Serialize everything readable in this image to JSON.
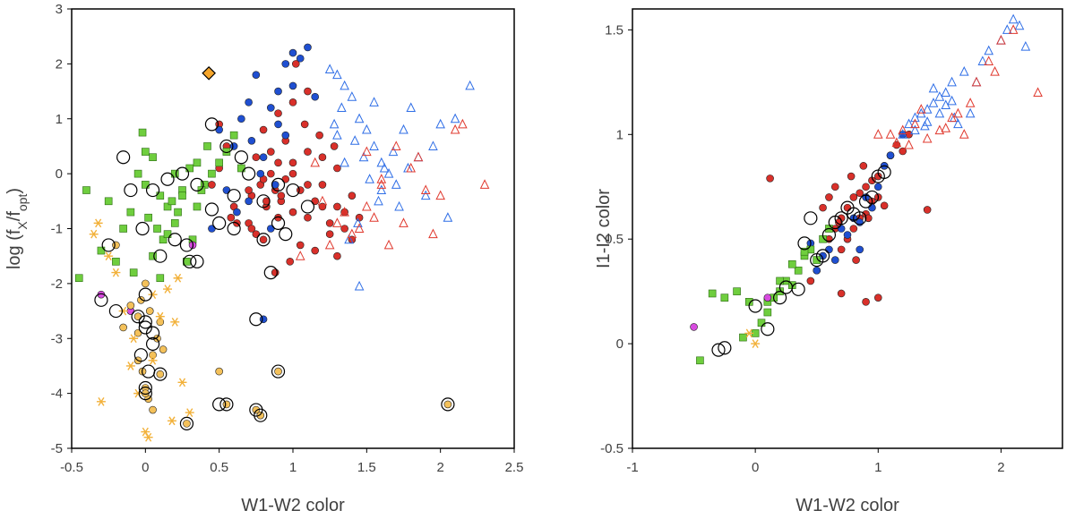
{
  "chart_data": [
    {
      "type": "scatter",
      "title": "",
      "xlabel": "W1-W2 color",
      "ylabel_main": "log (f",
      "ylabel_sub_x": "X",
      "ylabel_mid": "/f",
      "ylabel_sub_opt": "opt",
      "ylabel_end": ")",
      "xlim": [
        -0.5,
        2.5
      ],
      "ylim": [
        -5,
        3
      ],
      "xticks": [
        -0.5,
        0,
        0.5,
        1,
        1.5,
        2,
        2.5
      ],
      "xtick_labels": [
        "-0.5",
        "0",
        "0.5",
        "1",
        "1.5",
        "2",
        "2.5"
      ],
      "yticks": [
        -5,
        -4,
        -3,
        -2,
        -1,
        0,
        1,
        2,
        3
      ],
      "ytick_labels": [
        "-5",
        "-4",
        "-3",
        "-2",
        "-1",
        "0",
        "1",
        "2",
        "3"
      ],
      "grid": false,
      "series": [
        {
          "marker": "circle",
          "color": "#d9302a",
          "x": [
            0.72,
            0.78,
            0.82,
            0.85,
            0.88,
            0.92,
            0.95,
            1.0,
            1.05,
            1.1,
            1.15,
            1.2,
            1.25,
            1.3,
            1.35,
            0.65,
            0.7,
            0.75,
            0.8,
            0.9,
            1.0,
            1.1,
            1.2,
            1.3,
            1.4,
            0.6,
            0.55,
            0.5,
            0.8,
            0.9,
            1.0,
            1.1,
            0.95,
            0.85,
            0.75,
            1.05,
            1.15,
            1.25,
            0.7,
            0.8,
            0.9,
            1.0,
            1.1,
            1.2,
            1.3,
            0.45,
            0.5,
            1.35,
            1.4,
            1.45,
            0.88,
            0.62,
            1.18,
            1.02,
            0.98,
            1.28,
            0.72,
            0.58,
            1.08,
            0.82,
            0.92
          ],
          "y": [
            -0.4,
            -0.2,
            -0.6,
            0.0,
            -0.3,
            -0.5,
            -0.1,
            -0.7,
            -0.3,
            -0.8,
            -0.5,
            -0.2,
            -0.9,
            -0.6,
            -1.0,
            0.1,
            -0.9,
            -1.1,
            -1.2,
            -0.8,
            0.2,
            0.4,
            0.3,
            0.1,
            -0.4,
            -0.6,
            0.5,
            0.9,
            0.8,
            1.1,
            1.3,
            1.5,
            0.6,
            0.4,
            0.3,
            -1.3,
            -1.4,
            -1.1,
            -0.3,
            -0.1,
            0.2,
            0.0,
            -0.2,
            -0.6,
            -1.5,
            -0.2,
            0.1,
            -0.7,
            -1.2,
            -0.8,
            -1.8,
            -0.9,
            0.7,
            2.0,
            -1.6,
            0.5,
            -1.0,
            -0.8,
            0.9,
            -0.5,
            -0.4
          ]
        },
        {
          "marker": "circle",
          "color": "#1f4fd1",
          "x": [
            0.6,
            0.65,
            0.7,
            0.75,
            0.8,
            0.85,
            0.9,
            0.95,
            1.0,
            1.05,
            1.1,
            0.5,
            0.55,
            0.45,
            0.8,
            0.9,
            1.0,
            0.7,
            0.85,
            0.78,
            0.95,
            1.15,
            0.62,
            0.88,
            0.72
          ],
          "y": [
            0.5,
            1.0,
            1.3,
            1.8,
            0.3,
            1.2,
            1.5,
            2.0,
            2.2,
            2.1,
            2.3,
            0.8,
            -0.3,
            -1.0,
            -2.65,
            0.9,
            1.6,
            -0.5,
            -1.0,
            0.0,
            0.7,
            1.4,
            -0.7,
            -0.2,
            0.6
          ]
        },
        {
          "marker": "triangle",
          "color": "#2f6ee6",
          "x": [
            1.3,
            1.35,
            1.4,
            1.45,
            1.5,
            1.55,
            1.6,
            1.65,
            1.7,
            1.75,
            1.8,
            1.85,
            1.9,
            1.95,
            2.05,
            2.1,
            2.2,
            1.25,
            1.42,
            1.48,
            1.52,
            1.58,
            1.62,
            1.68,
            1.72,
            1.38,
            1.44,
            1.28,
            1.35,
            1.55,
            1.6,
            1.3,
            1.45,
            2.0,
            1.78,
            1.33
          ],
          "y": [
            1.8,
            1.6,
            1.4,
            1.0,
            0.8,
            0.5,
            0.2,
            0.0,
            -0.2,
            0.8,
            1.2,
            0.3,
            -0.4,
            0.5,
            -0.8,
            1.0,
            1.6,
            1.9,
            0.6,
            0.3,
            -0.1,
            -0.5,
            0.1,
            0.4,
            -0.6,
            -1.2,
            -0.9,
            0.9,
            0.2,
            1.3,
            -0.3,
            0.7,
            -2.05,
            0.9,
            0.1,
            1.2
          ]
        },
        {
          "marker": "triangle",
          "color": "#e0392e",
          "x": [
            1.2,
            1.3,
            1.4,
            1.5,
            1.6,
            1.7,
            1.8,
            1.9,
            2.0,
            2.1,
            2.3,
            1.25,
            1.35,
            1.45,
            1.55,
            1.65,
            1.75,
            1.85,
            1.15,
            1.95,
            2.15,
            1.05,
            1.5,
            1.6
          ],
          "y": [
            -0.5,
            -0.9,
            -1.1,
            -0.6,
            -0.2,
            0.5,
            0.1,
            -0.3,
            -0.4,
            0.8,
            -0.2,
            -1.3,
            -0.7,
            -1.0,
            -0.8,
            -1.3,
            -0.9,
            0.3,
            0.2,
            -1.1,
            0.9,
            -1.5,
            0.4,
            -0.1
          ]
        },
        {
          "marker": "square",
          "color": "#6fce3e",
          "x": [
            -0.45,
            -0.4,
            -0.3,
            -0.25,
            -0.2,
            -0.15,
            -0.1,
            -0.05,
            0.0,
            0.05,
            0.1,
            0.15,
            0.2,
            0.25,
            0.3,
            0.35,
            0.4,
            0.45,
            0.5,
            0.55,
            -0.02,
            0.02,
            0.08,
            0.12,
            0.18,
            0.22,
            0.28,
            0.32,
            0.38,
            -0.08,
            0.0,
            0.05,
            0.1,
            0.15,
            0.2,
            0.25,
            0.6,
            0.65,
            0.35,
            0.42
          ],
          "y": [
            -1.9,
            -0.3,
            -1.4,
            -0.5,
            -1.6,
            -1.0,
            -0.7,
            0.0,
            0.4,
            0.3,
            -0.4,
            -0.6,
            -0.9,
            -0.3,
            0.1,
            0.2,
            -0.2,
            0.0,
            0.2,
            0.4,
            0.75,
            -0.8,
            -1.0,
            -1.2,
            -0.5,
            -0.7,
            -1.6,
            -1.2,
            -0.3,
            -1.8,
            -0.2,
            -1.5,
            -1.9,
            -1.1,
            0.0,
            -0.4,
            0.7,
            0.1,
            -0.6,
            0.5
          ]
        },
        {
          "marker": "circle",
          "color": "#d84be0",
          "x": [
            -0.3,
            -0.1,
            0.32
          ],
          "y": [
            -2.2,
            -2.5,
            -1.3
          ]
        },
        {
          "marker": "circle",
          "color": "#f4c15a",
          "x": [
            -0.2,
            -0.15,
            -0.1,
            -0.05,
            -0.05,
            -0.02,
            0.0,
            0.02,
            0.05,
            0.08,
            0.1,
            0.12,
            0.0,
            -0.03,
            0.03,
            -0.05,
            0.05,
            0.0,
            0.5,
            0.55,
            0.75,
            0.78,
            0.9,
            2.05,
            0.28,
            0.1
          ],
          "y": [
            -1.3,
            -2.8,
            -2.4,
            -2.6,
            -3.4,
            -3.6,
            -3.9,
            -4.1,
            -4.3,
            -3.0,
            -2.7,
            -3.2,
            -2.0,
            -2.3,
            -2.5,
            -2.9,
            -3.3,
            -4.0,
            -3.6,
            -4.2,
            -4.3,
            -4.4,
            -3.6,
            -4.2,
            -4.55,
            -3.65
          ]
        },
        {
          "marker": "asterisk",
          "color": "#f2b13a",
          "x": [
            -0.35,
            -0.3,
            -0.25,
            -0.2,
            -0.15,
            -0.1,
            -0.05,
            0.0,
            0.02,
            0.05,
            0.1,
            0.15,
            0.2,
            0.25,
            0.3,
            -0.32,
            0.18,
            0.22,
            -0.08,
            0.05
          ],
          "y": [
            -1.1,
            -4.15,
            -1.5,
            -1.8,
            -2.5,
            -3.5,
            -4.0,
            -4.7,
            -4.8,
            -2.2,
            -2.6,
            -2.1,
            -2.7,
            -3.8,
            -4.35,
            -0.9,
            -4.5,
            -1.9,
            -3.0,
            -3.4
          ]
        },
        {
          "marker": "diamond",
          "color": "#f5a52a",
          "x": [
            0.43
          ],
          "y": [
            1.83
          ]
        },
        {
          "marker": "ring",
          "color": "#000000",
          "x": [
            -0.25,
            -0.2,
            -0.1,
            -0.05,
            0.0,
            0.05,
            -0.03,
            0.02,
            0.0,
            -0.02,
            0.05,
            0.1,
            0.15,
            0.2,
            0.25,
            0.3,
            0.35,
            0.45,
            0.5,
            0.55,
            0.6,
            0.65,
            0.7,
            0.8,
            0.9,
            1.0,
            1.1,
            0.75,
            0.85,
            -0.15,
            -0.3,
            0.0,
            0.05,
            0.0,
            0.5,
            0.55,
            0.75,
            0.78,
            0.9,
            2.05,
            0.28,
            0.1,
            0.45,
            0.28,
            0.8,
            0.9,
            0.95,
            0.35,
            0.6,
            0.0
          ],
          "y": [
            -1.3,
            -2.5,
            -0.3,
            -2.6,
            -2.7,
            -2.9,
            -3.3,
            -3.6,
            -4.0,
            -1.0,
            -0.3,
            -1.5,
            -0.1,
            -1.2,
            0.0,
            -1.6,
            -0.2,
            0.9,
            -0.9,
            0.5,
            -1.0,
            0.3,
            0.0,
            -0.5,
            -0.2,
            -0.3,
            -0.6,
            -2.65,
            -1.8,
            0.3,
            -2.3,
            -2.8,
            -3.1,
            -3.9,
            -4.2,
            -4.2,
            -4.3,
            -4.4,
            -3.6,
            -4.2,
            -4.55,
            -3.65,
            -0.65,
            -1.3,
            -1.2,
            -0.9,
            -1.1,
            -1.6,
            -0.4,
            -2.2
          ]
        }
      ]
    },
    {
      "type": "scatter",
      "title": "",
      "xlabel": "W1-W2 color",
      "ylabel": "I1-I2 color",
      "xlim": [
        -1,
        2.5
      ],
      "ylim": [
        -0.5,
        1.6
      ],
      "xticks": [
        -1,
        0,
        1,
        2
      ],
      "xtick_labels": [
        "-1",
        "0",
        "1",
        "2"
      ],
      "yticks": [
        -0.5,
        0,
        0.5,
        1,
        1.5
      ],
      "ytick_labels": [
        "-0.5",
        "0",
        "0.5",
        "1",
        "1.5"
      ],
      "grid": false,
      "series": [
        {
          "marker": "circle",
          "color": "#d9302a",
          "x": [
            0.6,
            0.65,
            0.7,
            0.75,
            0.8,
            0.85,
            0.9,
            0.95,
            1.0,
            1.05,
            1.1,
            0.7,
            0.75,
            0.8,
            0.85,
            0.9,
            0.95,
            1.0,
            0.55,
            0.6,
            0.65,
            0.5,
            0.45,
            1.15,
            1.2,
            1.25,
            0.12,
            1.0,
            0.9,
            0.7,
            1.4,
            0.88,
            0.92,
            0.78,
            0.82,
            0.68,
            1.05
          ],
          "y": [
            0.5,
            0.55,
            0.6,
            0.65,
            0.7,
            0.72,
            0.75,
            0.78,
            0.8,
            0.85,
            0.9,
            0.45,
            0.5,
            0.55,
            0.6,
            0.62,
            0.68,
            0.7,
            0.65,
            0.7,
            0.75,
            0.35,
            0.3,
            0.95,
            0.92,
            1.0,
            0.79,
            0.22,
            0.2,
            0.24,
            0.64,
            0.85,
            0.6,
            0.8,
            0.4,
            0.58,
            0.66
          ]
        },
        {
          "marker": "circle",
          "color": "#1f4fd1",
          "x": [
            0.6,
            0.7,
            0.8,
            0.9,
            1.0,
            1.1,
            1.2,
            0.65,
            0.75,
            0.85,
            0.95,
            1.05,
            0.55,
            0.5,
            0.85,
            0.45
          ],
          "y": [
            0.45,
            0.55,
            0.6,
            0.7,
            0.75,
            0.9,
            1.0,
            0.4,
            0.52,
            0.58,
            0.65,
            0.85,
            0.42,
            0.35,
            0.45,
            0.48
          ]
        },
        {
          "marker": "triangle",
          "color": "#2f6ee6",
          "x": [
            1.2,
            1.25,
            1.3,
            1.35,
            1.4,
            1.45,
            1.5,
            1.55,
            1.6,
            1.65,
            1.7,
            1.8,
            1.85,
            1.9,
            2.0,
            2.05,
            2.1,
            2.15,
            2.2,
            1.3,
            1.4,
            1.5,
            1.55,
            1.6,
            1.45,
            1.38,
            1.62,
            1.75
          ],
          "y": [
            1.0,
            1.05,
            1.08,
            1.1,
            1.12,
            1.15,
            1.18,
            1.2,
            1.25,
            1.05,
            1.3,
            1.25,
            1.35,
            1.4,
            1.45,
            1.5,
            1.55,
            1.52,
            1.42,
            1.02,
            1.06,
            1.1,
            1.14,
            1.16,
            1.22,
            1.04,
            1.08,
            1.1
          ]
        },
        {
          "marker": "triangle",
          "color": "#e0392e",
          "x": [
            1.0,
            1.1,
            1.2,
            1.3,
            1.4,
            1.5,
            1.6,
            1.7,
            1.8,
            1.9,
            2.0,
            2.1,
            2.3,
            1.15,
            1.35,
            1.55,
            1.75,
            1.95,
            1.25,
            1.65
          ],
          "y": [
            1.0,
            1.0,
            1.02,
            1.05,
            0.98,
            1.02,
            1.08,
            1.0,
            1.25,
            1.35,
            1.45,
            1.5,
            1.2,
            0.96,
            1.12,
            1.03,
            1.15,
            1.3,
            0.95,
            1.1
          ]
        },
        {
          "marker": "square",
          "color": "#6fce3e",
          "x": [
            -0.45,
            -0.35,
            -0.25,
            -0.15,
            -0.05,
            0.0,
            0.05,
            0.1,
            0.15,
            0.2,
            0.25,
            0.3,
            0.35,
            0.4,
            0.45,
            0.5,
            0.55,
            -0.1,
            0.1,
            0.2,
            0.3,
            0.4,
            0.6
          ],
          "y": [
            -0.08,
            0.24,
            0.22,
            0.25,
            0.2,
            0.05,
            0.1,
            0.2,
            0.22,
            0.25,
            0.3,
            0.28,
            0.35,
            0.42,
            0.45,
            0.4,
            0.5,
            0.03,
            0.15,
            0.3,
            0.38,
            0.44,
            0.55
          ]
        },
        {
          "marker": "circle",
          "color": "#d84be0",
          "x": [
            -0.5,
            0.1
          ],
          "y": [
            0.08,
            0.22
          ]
        },
        {
          "marker": "asterisk",
          "color": "#f2b13a",
          "x": [
            0.0,
            -0.05
          ],
          "y": [
            0.0,
            0.05
          ]
        },
        {
          "marker": "ring",
          "color": "#000000",
          "x": [
            -0.3,
            -0.25,
            0.0,
            0.1,
            0.2,
            0.25,
            0.4,
            0.5,
            0.55,
            0.6,
            0.65,
            0.7,
            0.8,
            0.9,
            1.0,
            1.05,
            0.45,
            0.35,
            0.75,
            0.85,
            0.95
          ],
          "y": [
            -0.03,
            -0.02,
            0.18,
            0.07,
            0.22,
            0.27,
            0.48,
            0.4,
            0.42,
            0.52,
            0.58,
            0.6,
            0.62,
            0.68,
            0.8,
            0.82,
            0.6,
            0.26,
            0.65,
            0.6,
            0.7
          ]
        }
      ]
    }
  ]
}
